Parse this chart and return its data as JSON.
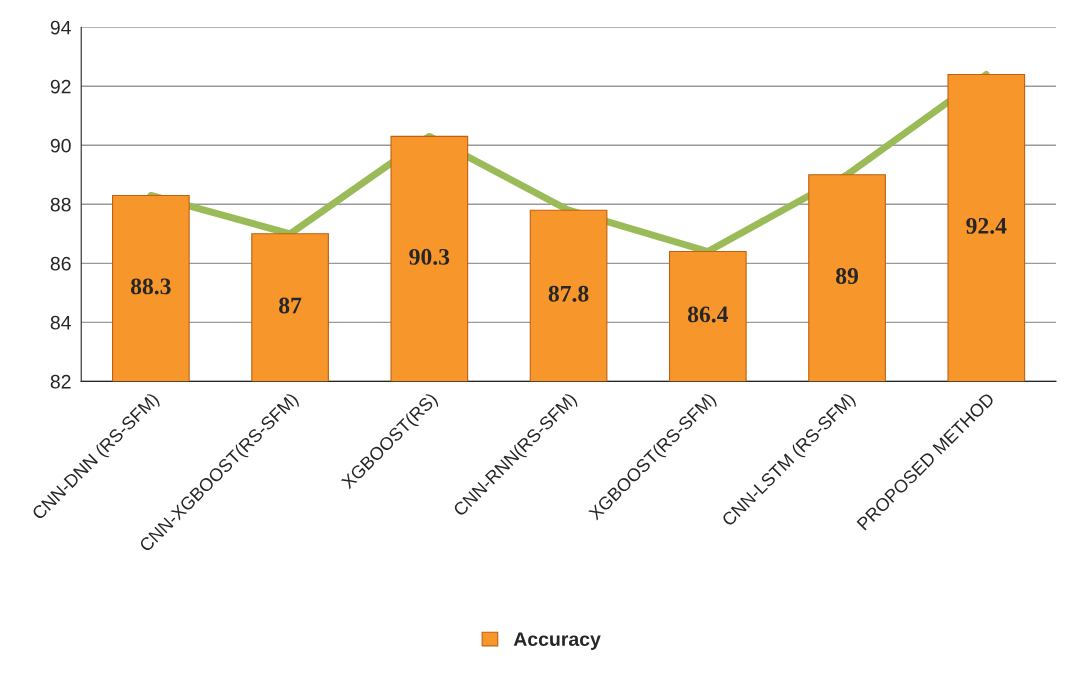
{
  "chart_data": {
    "type": "bar",
    "categories": [
      "CNN-DNN (RS-SFM)",
      "CNN-XGBOOST(RS-SFM)",
      "XGBOOST(RS)",
      "CNN-RNN(RS-SFM)",
      "XGBOOST(RS-SFM)",
      "CNN-LSTM (RS-SFM)",
      "PROPOSED METHOD"
    ],
    "series": [
      {
        "name": "Accuracy",
        "color": "#f7962b",
        "values": [
          88.3,
          87,
          90.3,
          87.8,
          86.4,
          89,
          92.4
        ],
        "value_labels": [
          "88.3",
          "87",
          "90.3",
          "87.8",
          "86.4",
          "89",
          "92.4"
        ]
      },
      {
        "type": "line",
        "color": "#9bbb59",
        "values": [
          88.3,
          87,
          90.3,
          87.8,
          86.4,
          89,
          92.4
        ]
      }
    ],
    "ylim": [
      82,
      94
    ],
    "yticks": [
      82,
      84,
      86,
      88,
      90,
      92,
      94
    ],
    "grid": "y",
    "legend": "bottom"
  }
}
